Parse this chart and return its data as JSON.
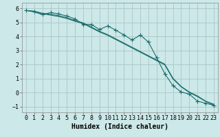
{
  "bg_color": "#cce8e8",
  "grid_color": "#b0caca",
  "line_color": "#1a6b6b",
  "xlabel": "Humidex (Indice chaleur)",
  "xlabel_fontsize": 7,
  "tick_fontsize": 6,
  "xlim": [
    -0.5,
    23.5
  ],
  "ylim": [
    -1.4,
    6.4
  ],
  "yticks": [
    -1,
    0,
    1,
    2,
    3,
    4,
    5,
    6
  ],
  "xticks": [
    0,
    1,
    2,
    3,
    4,
    5,
    6,
    7,
    8,
    9,
    10,
    11,
    12,
    13,
    14,
    15,
    16,
    17,
    18,
    19,
    20,
    21,
    22,
    23
  ],
  "curve_bumpy_x": [
    0,
    1,
    2,
    3,
    4,
    5,
    6,
    7,
    8,
    9,
    10,
    11,
    12,
    13,
    14,
    15,
    16,
    17,
    18,
    19,
    20,
    21,
    22,
    23
  ],
  "curve_bumpy_y": [
    5.85,
    5.75,
    5.55,
    5.7,
    5.6,
    5.45,
    5.25,
    4.85,
    4.85,
    4.5,
    4.75,
    4.45,
    4.1,
    3.75,
    4.1,
    3.6,
    2.5,
    1.35,
    0.5,
    0.05,
    -0.1,
    -0.6,
    -0.75,
    -0.9
  ],
  "curve_line1_x": [
    0,
    1,
    2,
    3,
    4,
    5,
    6,
    7,
    8,
    9,
    10,
    11,
    12,
    13,
    14,
    15,
    16,
    17,
    18,
    19,
    20,
    21,
    22,
    23
  ],
  "curve_line1_y": [
    5.85,
    5.78,
    5.62,
    5.52,
    5.42,
    5.28,
    5.08,
    4.92,
    4.62,
    4.32,
    4.08,
    3.78,
    3.48,
    3.18,
    2.88,
    2.58,
    2.28,
    1.98,
    0.98,
    0.42,
    0.02,
    -0.28,
    -0.62,
    -0.88
  ],
  "curve_line2_x": [
    0,
    1,
    2,
    3,
    4,
    5,
    6,
    7,
    8,
    9,
    10,
    11,
    12,
    13,
    14,
    15,
    16,
    17,
    18,
    19,
    20,
    21,
    22,
    23
  ],
  "curve_line2_y": [
    5.85,
    5.8,
    5.65,
    5.58,
    5.48,
    5.33,
    5.13,
    4.97,
    4.67,
    4.37,
    4.13,
    3.83,
    3.53,
    3.23,
    2.93,
    2.63,
    2.33,
    2.03,
    1.03,
    0.45,
    0.05,
    -0.23,
    -0.6,
    -0.82
  ]
}
